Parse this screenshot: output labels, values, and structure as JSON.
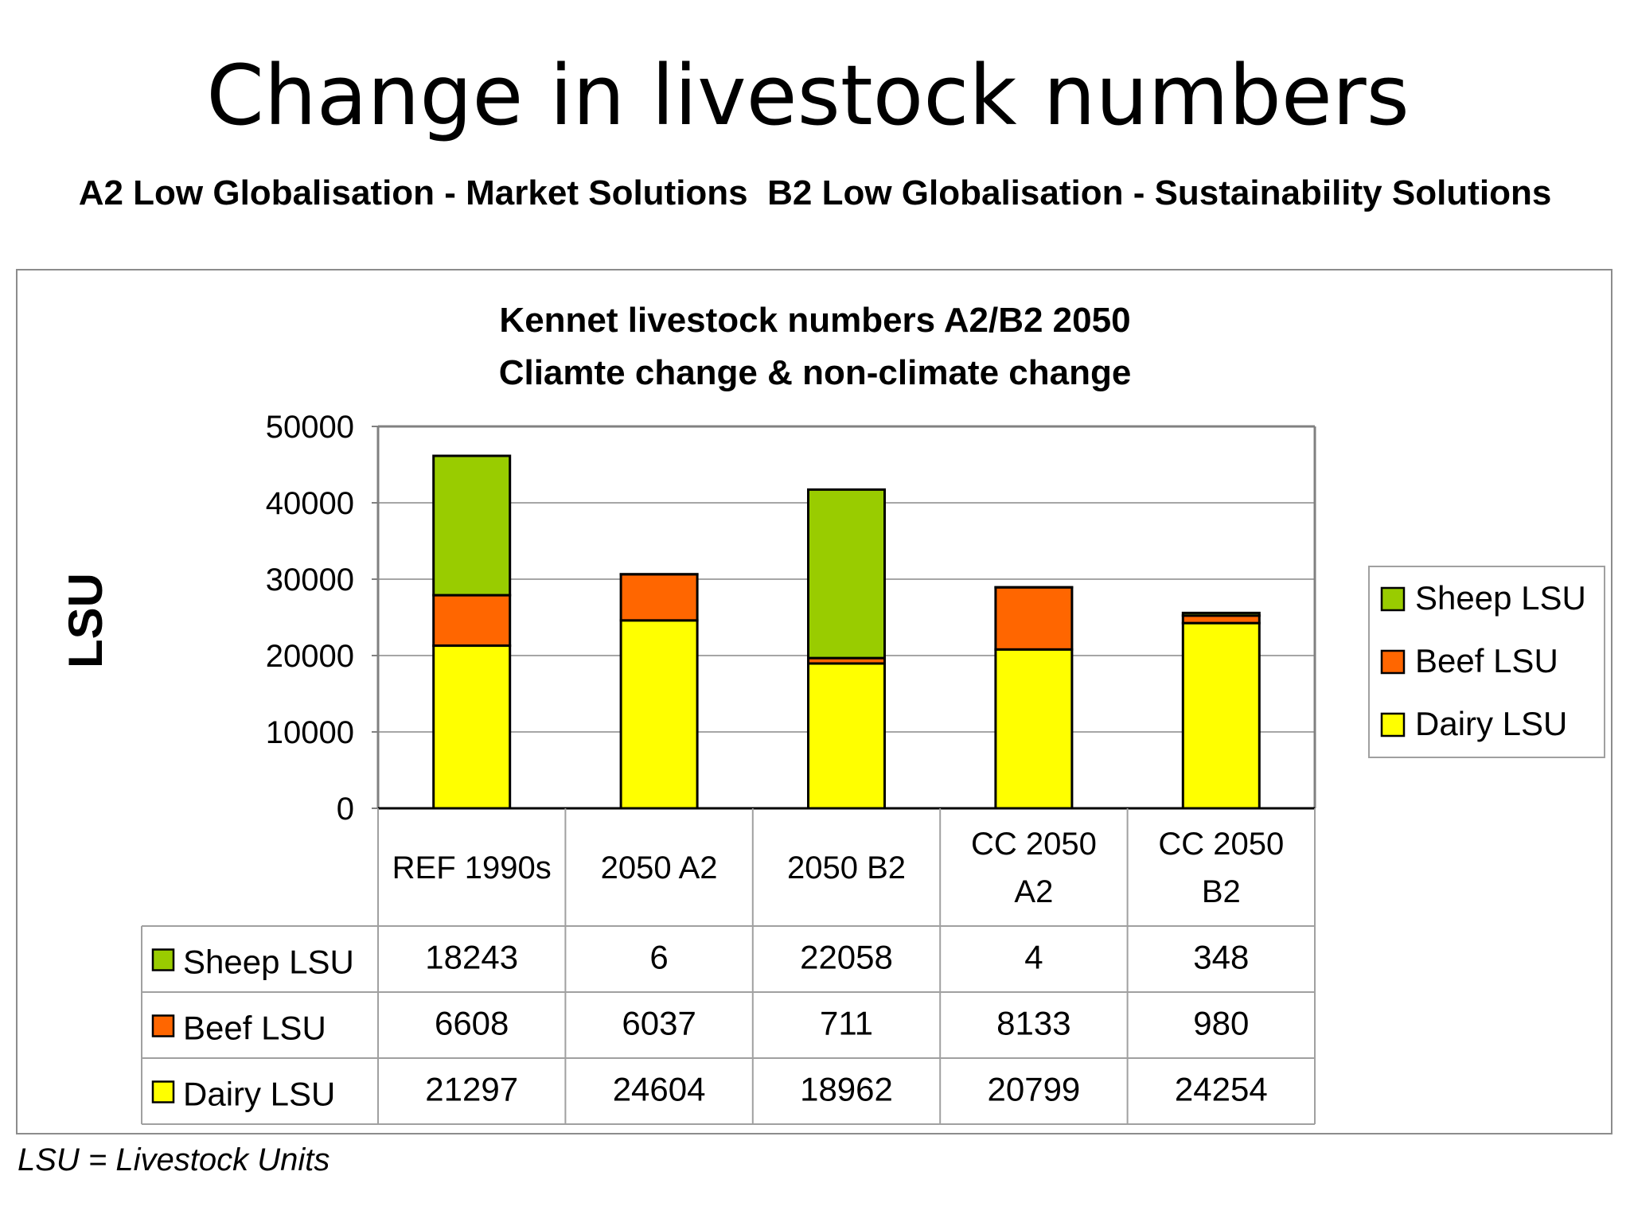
{
  "slide": {
    "title": "Change in livestock numbers",
    "subtitle": "A2 Low Globalisation - Market Solutions  B2 Low Globalisation - Sustainability Solutions",
    "footnote": "LSU = Livestock Units"
  },
  "colors": {
    "sheep": "#99cc00",
    "beef": "#ff6600",
    "dairy": "#ffff00"
  },
  "chart_data": {
    "type": "bar",
    "stacked": true,
    "title_lines": [
      "Kennet livestock numbers A2/B2 2050",
      "Cliamte change & non-climate change"
    ],
    "ylabel": "LSU",
    "xlabel": "",
    "ylim": [
      0,
      50000
    ],
    "yticks": [
      0,
      10000,
      20000,
      30000,
      40000,
      50000
    ],
    "grid": true,
    "legend_position": "right",
    "categories": [
      [
        "REF 1990s"
      ],
      [
        "2050 A2"
      ],
      [
        "2050 B2"
      ],
      [
        "CC 2050",
        "A2"
      ],
      [
        "CC 2050",
        "B2"
      ]
    ],
    "series": [
      {
        "name": "Sheep LSU",
        "color_key": "sheep",
        "values": [
          18243,
          6,
          22058,
          4,
          348
        ]
      },
      {
        "name": "Beef LSU",
        "color_key": "beef",
        "values": [
          6608,
          6037,
          711,
          8133,
          980
        ]
      },
      {
        "name": "Dairy LSU",
        "color_key": "dairy",
        "values": [
          21297,
          24604,
          18962,
          20799,
          24254
        ]
      }
    ],
    "stack_order": [
      "Dairy LSU",
      "Beef LSU",
      "Sheep LSU"
    ],
    "legend_order": [
      "Sheep LSU",
      "Beef LSU",
      "Dairy LSU"
    ],
    "table_order": [
      "Sheep LSU",
      "Beef LSU",
      "Dairy LSU"
    ]
  }
}
